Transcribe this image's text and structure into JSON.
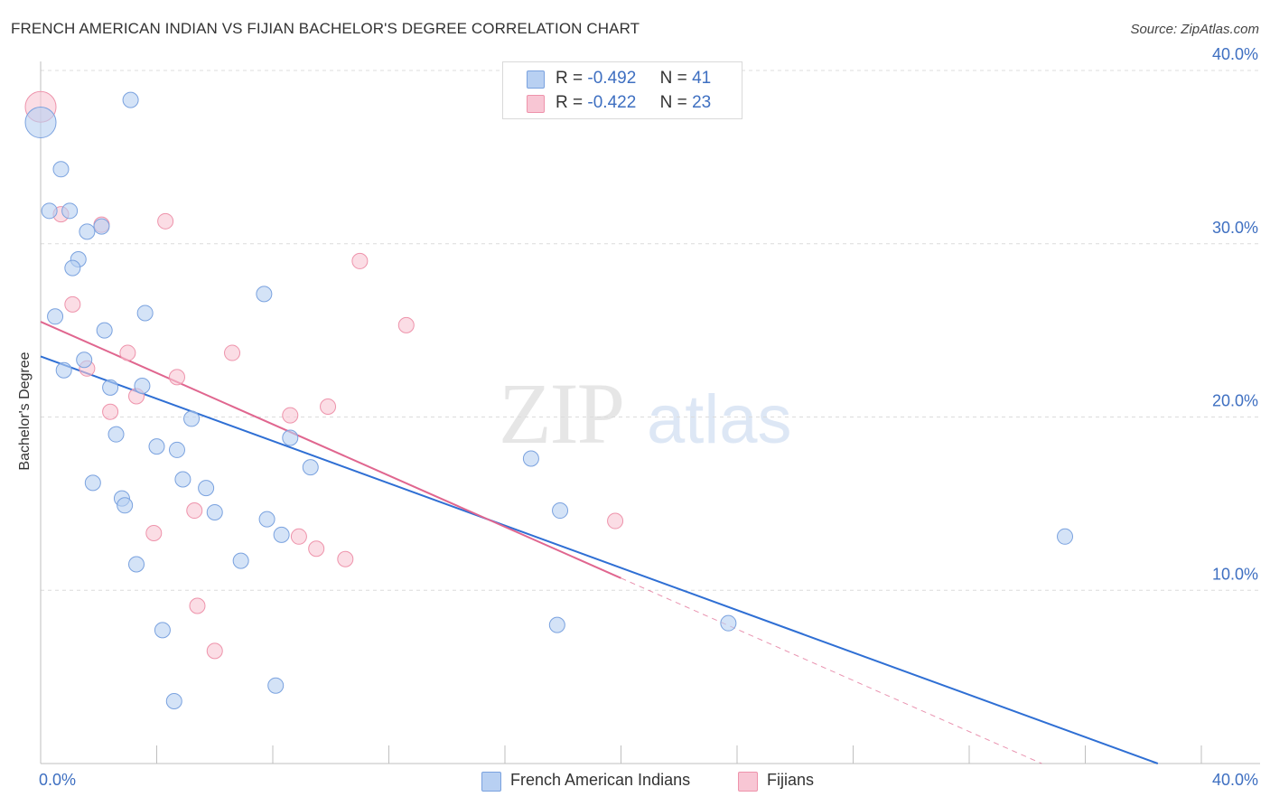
{
  "title": "FRENCH AMERICAN INDIAN VS FIJIAN BACHELOR'S DEGREE CORRELATION CHART",
  "source": "Source: ZipAtlas.com",
  "watermark": {
    "zip": "ZIP",
    "atlas": "atlas"
  },
  "legend_top": [
    {
      "r_label": "R =",
      "r_value": "-0.492",
      "n_label": "N =",
      "n_value": "41",
      "fill": "#b8d0f2",
      "stroke": "#7aa2df"
    },
    {
      "r_label": "R =",
      "r_value": "-0.422",
      "n_label": "N =",
      "n_value": "23",
      "fill": "#f8c6d4",
      "stroke": "#ee93ab"
    }
  ],
  "legend_bottom": [
    {
      "label": "French American Indians",
      "fill": "#b8d0f2",
      "stroke": "#7aa2df"
    },
    {
      "label": "Fijians",
      "fill": "#f8c6d4",
      "stroke": "#ee93ab"
    }
  ],
  "chart_data": {
    "type": "scatter",
    "title": "FRENCH AMERICAN INDIAN VS FIJIAN BACHELOR'S DEGREE CORRELATION CHART",
    "xlabel": "",
    "ylabel": "Bachelor's Degree",
    "xlim": [
      0,
      40
    ],
    "ylim": [
      0,
      40
    ],
    "x_tick_labels": [
      "0.0%",
      "40.0%"
    ],
    "y_ticks": [
      10,
      20,
      30,
      40
    ],
    "y_tick_labels": [
      "10.0%",
      "20.0%",
      "30.0%",
      "40.0%"
    ],
    "grid": true,
    "legend_position": "top-center",
    "series": [
      {
        "name": "French American Indians",
        "color": "#7aa2df",
        "fill": "#b8d0f2",
        "trend_color": "#2f6fd4",
        "r": -0.492,
        "n": 41,
        "trend": {
          "x0": 0.0,
          "y0": 23.5,
          "x1": 38.5,
          "y1": 0.0
        },
        "points": [
          {
            "x": 0.0,
            "y": 37.0,
            "big": true
          },
          {
            "x": 3.1,
            "y": 38.3
          },
          {
            "x": 0.7,
            "y": 34.3
          },
          {
            "x": 0.3,
            "y": 31.9
          },
          {
            "x": 1.0,
            "y": 31.9
          },
          {
            "x": 2.1,
            "y": 31.0
          },
          {
            "x": 1.6,
            "y": 30.7
          },
          {
            "x": 1.3,
            "y": 29.1
          },
          {
            "x": 1.1,
            "y": 28.6
          },
          {
            "x": 7.7,
            "y": 27.1
          },
          {
            "x": 0.5,
            "y": 25.8
          },
          {
            "x": 3.6,
            "y": 26.0
          },
          {
            "x": 2.2,
            "y": 25.0
          },
          {
            "x": 1.5,
            "y": 23.3
          },
          {
            "x": 0.8,
            "y": 22.7
          },
          {
            "x": 2.4,
            "y": 21.7
          },
          {
            "x": 3.5,
            "y": 21.8
          },
          {
            "x": 5.2,
            "y": 19.9
          },
          {
            "x": 2.6,
            "y": 19.0
          },
          {
            "x": 4.0,
            "y": 18.3
          },
          {
            "x": 4.7,
            "y": 18.1
          },
          {
            "x": 8.6,
            "y": 18.8
          },
          {
            "x": 9.3,
            "y": 17.1
          },
          {
            "x": 16.9,
            "y": 17.6
          },
          {
            "x": 1.8,
            "y": 16.2
          },
          {
            "x": 4.9,
            "y": 16.4
          },
          {
            "x": 5.7,
            "y": 15.9
          },
          {
            "x": 2.8,
            "y": 15.3
          },
          {
            "x": 2.9,
            "y": 14.9
          },
          {
            "x": 6.0,
            "y": 14.5
          },
          {
            "x": 7.8,
            "y": 14.1
          },
          {
            "x": 17.9,
            "y": 14.6
          },
          {
            "x": 8.3,
            "y": 13.2
          },
          {
            "x": 35.3,
            "y": 13.1
          },
          {
            "x": 3.3,
            "y": 11.5
          },
          {
            "x": 6.9,
            "y": 11.7
          },
          {
            "x": 4.2,
            "y": 7.7
          },
          {
            "x": 17.8,
            "y": 8.0
          },
          {
            "x": 23.7,
            "y": 8.1
          },
          {
            "x": 8.1,
            "y": 4.5
          },
          {
            "x": 4.6,
            "y": 3.6
          }
        ]
      },
      {
        "name": "Fijians",
        "color": "#ee93ab",
        "fill": "#f8c6d4",
        "trend_color": "#e0668f",
        "r": -0.422,
        "n": 23,
        "trend": {
          "x0": 0.0,
          "y0": 25.5,
          "x1": 20.0,
          "y1": 10.7
        },
        "trend_dashed": {
          "x0": 20.0,
          "y0": 10.7,
          "x1": 34.5,
          "y1": 0.0
        },
        "points": [
          {
            "x": 0.0,
            "y": 37.9,
            "big": true
          },
          {
            "x": 0.7,
            "y": 31.7
          },
          {
            "x": 2.1,
            "y": 31.1
          },
          {
            "x": 4.3,
            "y": 31.3
          },
          {
            "x": 11.0,
            "y": 29.0
          },
          {
            "x": 1.1,
            "y": 26.5
          },
          {
            "x": 12.6,
            "y": 25.3
          },
          {
            "x": 3.0,
            "y": 23.7
          },
          {
            "x": 6.6,
            "y": 23.7
          },
          {
            "x": 1.6,
            "y": 22.8
          },
          {
            "x": 4.7,
            "y": 22.3
          },
          {
            "x": 3.3,
            "y": 21.2
          },
          {
            "x": 2.4,
            "y": 20.3
          },
          {
            "x": 8.6,
            "y": 20.1
          },
          {
            "x": 9.9,
            "y": 20.6
          },
          {
            "x": 5.3,
            "y": 14.6
          },
          {
            "x": 19.8,
            "y": 14.0
          },
          {
            "x": 3.9,
            "y": 13.3
          },
          {
            "x": 8.9,
            "y": 13.1
          },
          {
            "x": 9.5,
            "y": 12.4
          },
          {
            "x": 10.5,
            "y": 11.8
          },
          {
            "x": 5.4,
            "y": 9.1
          },
          {
            "x": 6.0,
            "y": 6.5
          }
        ]
      }
    ]
  }
}
